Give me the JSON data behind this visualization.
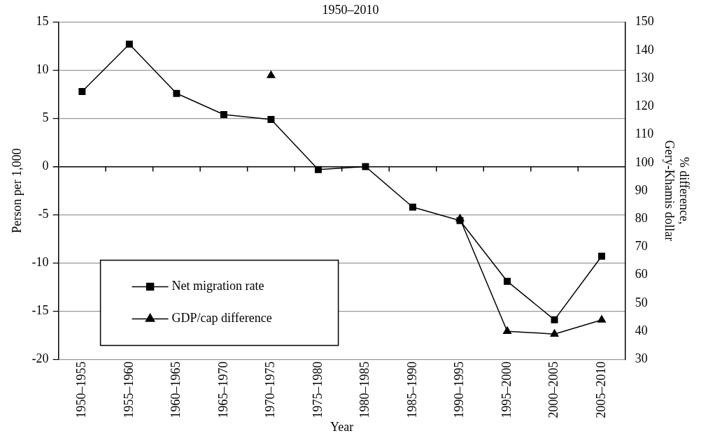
{
  "chart_data": {
    "type": "line",
    "title": "1950–2010",
    "xlabel": "Year",
    "ylabel": "Person per 1,000",
    "y2label": "% difference,\nGery-Khamis dollar",
    "categories": [
      "1950–1955",
      "1955–1960",
      "1960–1965",
      "1965–1970",
      "1970–1975",
      "1975–1980",
      "1980–1985",
      "1985–1990",
      "1990–1995",
      "1995–2000",
      "2000–2005",
      "2005–2010"
    ],
    "series": [
      {
        "name": "Net migration rate",
        "color": "#000000",
        "marker": "square",
        "values": [
          7.8,
          12.7,
          7.6,
          5.4,
          4.9,
          -0.3,
          0,
          -4.2,
          -5.6,
          -11.9,
          -15.9,
          -9.3
        ]
      },
      {
        "name": "GDP/cap difference",
        "color": "#000000",
        "marker": "triangle",
        "axis": "y2",
        "values": [
          null,
          null,
          null,
          null,
          131,
          null,
          null,
          null,
          80,
          40,
          39,
          44
        ]
      }
    ],
    "ylim": [
      -20,
      15
    ],
    "yticks": [
      -20,
      -15,
      -10,
      -5,
      0,
      5,
      10,
      15
    ],
    "y2lim": [
      30,
      150
    ],
    "y2ticks": [
      30,
      40,
      50,
      60,
      70,
      80,
      90,
      100,
      110,
      120,
      130,
      140,
      150
    ],
    "grid": "y",
    "legend": "bottom left",
    "line_style": "solid"
  }
}
